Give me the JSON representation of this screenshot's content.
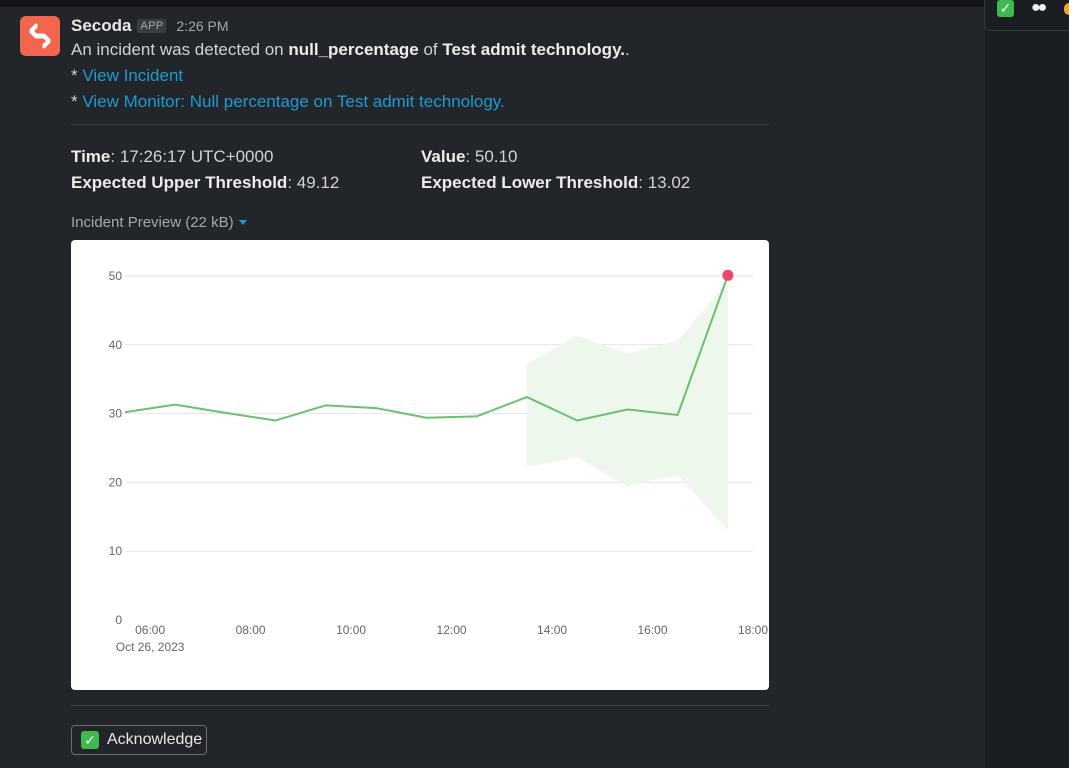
{
  "reactions": [
    {
      "icon": "white-check-mark-icon",
      "glyph": "✓"
    },
    {
      "icon": "eyes-icon",
      "glyph": "👀"
    }
  ],
  "message": {
    "sender": "Secoda",
    "badge": "APP",
    "time": "2:26 PM",
    "text_prefix": "An incident was detected on ",
    "metric": "null_percentage",
    "text_mid": " of ",
    "table": "Test admit technology.",
    "text_suffix": ".",
    "links": [
      {
        "bullet": "* ",
        "label": "View Incident"
      },
      {
        "bullet": "* ",
        "label": "View Monitor: Null percentage on Test admit technology."
      }
    ]
  },
  "fields": {
    "time_label": "Time",
    "time_value": ": 17:26:17 UTC+0000",
    "value_label": "Value",
    "value_value": ": 50.10",
    "upper_label": "Expected Upper Threshold",
    "upper_value": ": 49.12",
    "lower_label": "Expected Lower Threshold",
    "lower_value": ": 13.02"
  },
  "preview": {
    "label": "Incident Preview (22 kB)"
  },
  "chart_data": {
    "type": "line",
    "title": "",
    "xlabel": "",
    "ylabel": "",
    "ylim": [
      0,
      50
    ],
    "xlim": [
      "05:30",
      "18:00"
    ],
    "yticks": [
      "0",
      "10",
      "20",
      "30",
      "40",
      "50"
    ],
    "xticks": [
      "06:00",
      "08:00",
      "10:00",
      "12:00",
      "14:00",
      "16:00",
      "18:00"
    ],
    "xdate_label": "Oct 26, 2023",
    "series": [
      {
        "color": "#6cc070",
        "x": [
          "05:30",
          "06:30",
          "07:30",
          "08:30",
          "09:30",
          "10:30",
          "11:30",
          "12:30",
          "13:30",
          "14:30",
          "15:30",
          "16:30",
          "17:30"
        ],
        "values": [
          30.2,
          31.3,
          30.1,
          29.0,
          31.2,
          30.8,
          29.4,
          29.6,
          32.4,
          29.0,
          30.6,
          29.8,
          50.1
        ]
      }
    ],
    "band": {
      "color": "#eef7ec",
      "x": [
        "13:30",
        "14:30",
        "15:30",
        "16:30",
        "17:30"
      ],
      "upper": [
        37.2,
        41.3,
        38.7,
        40.6,
        49.12
      ],
      "lower": [
        22.2,
        23.7,
        19.4,
        21.1,
        13.02
      ]
    },
    "anomaly": {
      "x": "17:30",
      "value": 50.1,
      "color": "#f0446a"
    }
  },
  "actions": {
    "acknowledge_label": "Acknowledge"
  }
}
